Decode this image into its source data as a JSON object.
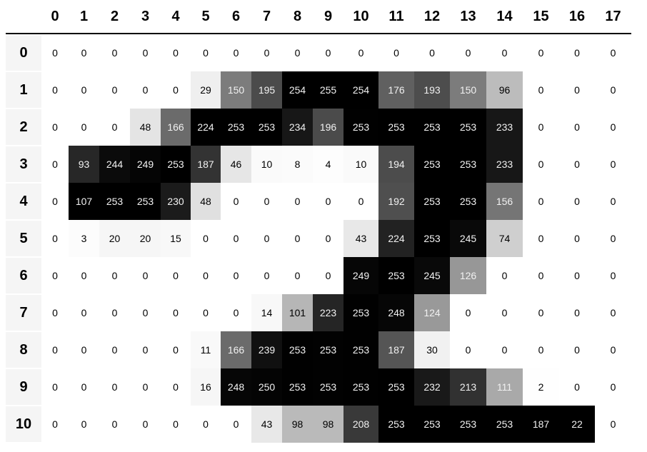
{
  "table": {
    "columns": [
      0,
      1,
      2,
      3,
      4,
      5,
      6,
      7,
      8,
      9,
      10,
      11,
      12,
      13,
      14,
      15,
      16,
      17
    ],
    "index": [
      0,
      1,
      2,
      3,
      4,
      5,
      6,
      7,
      8,
      9,
      10
    ],
    "rows": [
      [
        0,
        0,
        0,
        0,
        0,
        0,
        0,
        0,
        0,
        0,
        0,
        0,
        0,
        0,
        0,
        0,
        0,
        0
      ],
      [
        0,
        0,
        0,
        0,
        0,
        29,
        150,
        195,
        254,
        255,
        254,
        176,
        193,
        150,
        96,
        0,
        0,
        0
      ],
      [
        0,
        0,
        0,
        48,
        166,
        224,
        253,
        253,
        234,
        196,
        253,
        253,
        253,
        253,
        233,
        0,
        0,
        0
      ],
      [
        0,
        93,
        244,
        249,
        253,
        187,
        46,
        10,
        8,
        4,
        10,
        194,
        253,
        253,
        233,
        0,
        0,
        0
      ],
      [
        0,
        107,
        253,
        253,
        230,
        48,
        0,
        0,
        0,
        0,
        0,
        192,
        253,
        253,
        156,
        0,
        0,
        0
      ],
      [
        0,
        3,
        20,
        20,
        15,
        0,
        0,
        0,
        0,
        0,
        43,
        224,
        253,
        245,
        74,
        0,
        0,
        0
      ],
      [
        0,
        0,
        0,
        0,
        0,
        0,
        0,
        0,
        0,
        0,
        249,
        253,
        245,
        126,
        0,
        0,
        0,
        0
      ],
      [
        0,
        0,
        0,
        0,
        0,
        0,
        0,
        14,
        101,
        223,
        253,
        248,
        124,
        0,
        0,
        0,
        0,
        0
      ],
      [
        0,
        0,
        0,
        0,
        0,
        11,
        166,
        239,
        253,
        253,
        253,
        187,
        30,
        0,
        0,
        0,
        0,
        0
      ],
      [
        0,
        0,
        0,
        0,
        0,
        16,
        248,
        250,
        253,
        253,
        253,
        253,
        232,
        213,
        111,
        2,
        0,
        0
      ],
      [
        0,
        0,
        0,
        0,
        0,
        0,
        0,
        43,
        98,
        98,
        208,
        253,
        253,
        253,
        253,
        187,
        22,
        0
      ]
    ]
  }
}
